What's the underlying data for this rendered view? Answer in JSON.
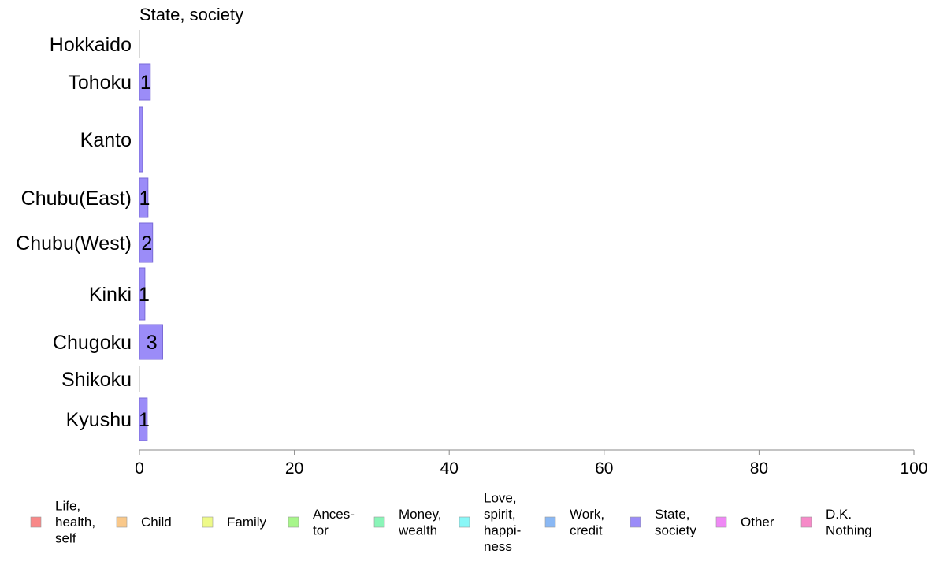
{
  "chart_data": {
    "type": "bar",
    "orientation": "horizontal",
    "title": "State, society",
    "categories": [
      "Hokkaido",
      "Tohoku",
      "Kanto",
      "Chubu(East)",
      "Chubu(West)",
      "Kinki",
      "Chugoku",
      "Shikoku",
      "Kyushu"
    ],
    "series": [
      {
        "name": "State, society",
        "values": [
          0,
          1.4,
          0.4,
          1.1,
          1.7,
          0.7,
          3.0,
          0,
          1.0
        ],
        "labels": [
          "",
          "1",
          "",
          "1",
          "2",
          "1",
          "3",
          "",
          "1"
        ]
      }
    ],
    "xlim": [
      0,
      100
    ],
    "xticks": [
      0,
      20,
      40,
      60,
      80,
      100
    ],
    "grid": false,
    "legend_position": "bottom",
    "legend": [
      {
        "label": "Life,\nhealth,\nself",
        "color": "#f88888"
      },
      {
        "label": "Child",
        "color": "#f9c88a"
      },
      {
        "label": "Family",
        "color": "#eefa88"
      },
      {
        "label": "Ances-\ntor",
        "color": "#a7f68a"
      },
      {
        "label": "Money,\nwealth",
        "color": "#8af5b8"
      },
      {
        "label": "Love,\nspirit,\nhappi-\nness",
        "color": "#89f7f7"
      },
      {
        "label": "Work,\ncredit",
        "color": "#8ab8f4"
      },
      {
        "label": "State,\nsociety",
        "color": "#9b8cf8"
      },
      {
        "label": "Other",
        "color": "#ef88f5"
      },
      {
        "label": "D.K.\nNothing",
        "color": "#f68ac8"
      }
    ]
  }
}
